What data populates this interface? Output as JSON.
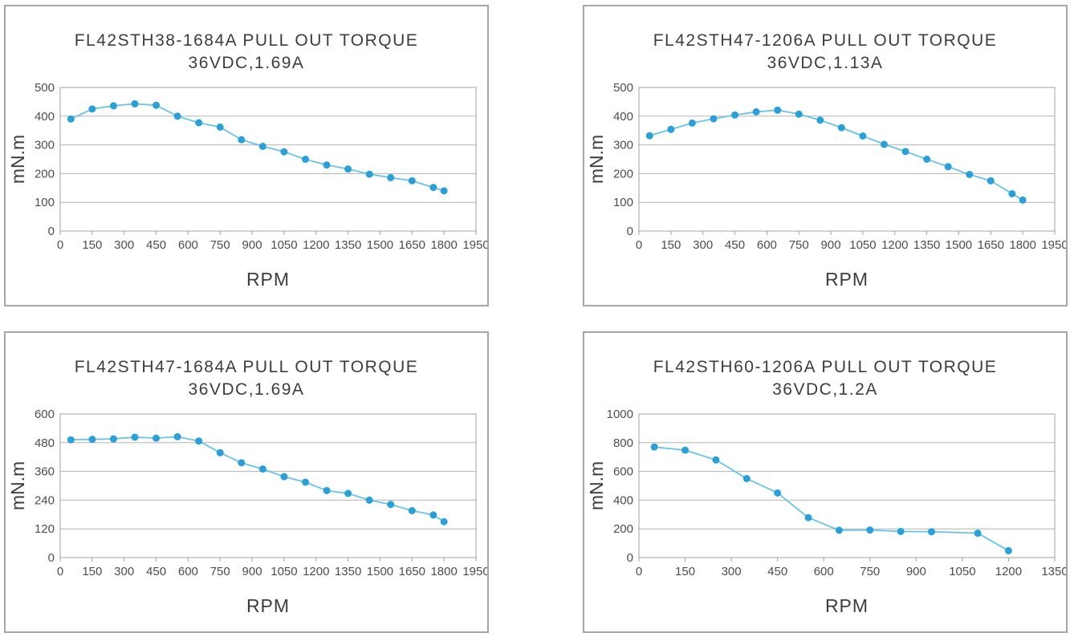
{
  "page": {
    "background": "#ffffff",
    "description": "Four stepper-motor pull-out torque curves arranged in a 2x2 grid"
  },
  "style": {
    "marker_color": "#2b9fd8",
    "line_color": "#67c3e8",
    "grid_color": "#b3b3b3",
    "axis_color": "#a0a0a0",
    "panel_border_color": "#a6a6a6",
    "title_color": "#3d3d3d",
    "tick_color": "#4d4d4d"
  },
  "chart_data": [
    {
      "type": "line",
      "title": "FL42STH38-1684A PULL OUT TORQUE",
      "subtitle": "36VDC,1.69A",
      "xlabel": "RPM",
      "ylabel": "mN.m",
      "legend": null,
      "grid": "horizontal",
      "xlim": [
        0,
        1950
      ],
      "ylim": [
        0,
        500
      ],
      "xticks": [
        0,
        150,
        300,
        450,
        600,
        750,
        900,
        1050,
        1200,
        1350,
        1500,
        1650,
        1800,
        1950
      ],
      "yticks": [
        0,
        100,
        200,
        300,
        400,
        500
      ],
      "x": [
        50,
        150,
        250,
        350,
        450,
        550,
        650,
        750,
        850,
        950,
        1050,
        1150,
        1250,
        1350,
        1450,
        1550,
        1650,
        1750,
        1800
      ],
      "y": [
        390,
        425,
        436,
        443,
        438,
        400,
        377,
        362,
        318,
        295,
        276,
        250,
        230,
        216,
        198,
        186,
        175,
        152,
        140
      ]
    },
    {
      "type": "line",
      "title": "FL42STH47-1206A PULL OUT TORQUE",
      "subtitle": "36VDC,1.13A",
      "xlabel": "RPM",
      "ylabel": "mN.m",
      "legend": null,
      "grid": "horizontal",
      "xlim": [
        0,
        1950
      ],
      "ylim": [
        0,
        500
      ],
      "xticks": [
        0,
        150,
        300,
        450,
        600,
        750,
        900,
        1050,
        1200,
        1350,
        1500,
        1650,
        1800,
        1950
      ],
      "yticks": [
        0,
        100,
        200,
        300,
        400,
        500
      ],
      "x": [
        50,
        150,
        250,
        350,
        450,
        550,
        650,
        750,
        850,
        950,
        1050,
        1150,
        1250,
        1350,
        1450,
        1550,
        1650,
        1750,
        1800
      ],
      "y": [
        332,
        354,
        376,
        391,
        404,
        415,
        421,
        407,
        386,
        360,
        331,
        302,
        277,
        250,
        224,
        197,
        175,
        130,
        108
      ]
    },
    {
      "type": "line",
      "title": "FL42STH47-1684A PULL OUT TORQUE",
      "subtitle": "36VDC,1.69A",
      "xlabel": "RPM",
      "ylabel": "mN.m",
      "legend": null,
      "grid": "horizontal",
      "xlim": [
        0,
        1950
      ],
      "ylim": [
        0,
        600
      ],
      "xticks": [
        0,
        150,
        300,
        450,
        600,
        750,
        900,
        1050,
        1200,
        1350,
        1500,
        1650,
        1800,
        1950
      ],
      "yticks": [
        0,
        120,
        240,
        360,
        480,
        600
      ],
      "x": [
        50,
        150,
        250,
        350,
        450,
        550,
        650,
        750,
        850,
        950,
        1050,
        1150,
        1250,
        1350,
        1450,
        1550,
        1650,
        1750,
        1800
      ],
      "y": [
        492,
        494,
        496,
        503,
        499,
        505,
        487,
        438,
        396,
        370,
        338,
        315,
        280,
        268,
        240,
        222,
        196,
        178,
        150
      ]
    },
    {
      "type": "line",
      "title": "FL42STH60-1206A PULL OUT TORQUE",
      "subtitle": "36VDC,1.2A",
      "xlabel": "RPM",
      "ylabel": "mN.m",
      "legend": null,
      "grid": "horizontal",
      "xlim": [
        0,
        1350
      ],
      "ylim": [
        0,
        1000
      ],
      "xticks": [
        0,
        150,
        300,
        450,
        600,
        750,
        900,
        1050,
        1200,
        1350
      ],
      "yticks": [
        0,
        200,
        400,
        600,
        800,
        1000
      ],
      "x": [
        50,
        150,
        250,
        350,
        450,
        550,
        650,
        750,
        850,
        950,
        1100,
        1200
      ],
      "y": [
        770,
        748,
        680,
        550,
        450,
        278,
        190,
        192,
        182,
        180,
        170,
        48
      ]
    }
  ]
}
